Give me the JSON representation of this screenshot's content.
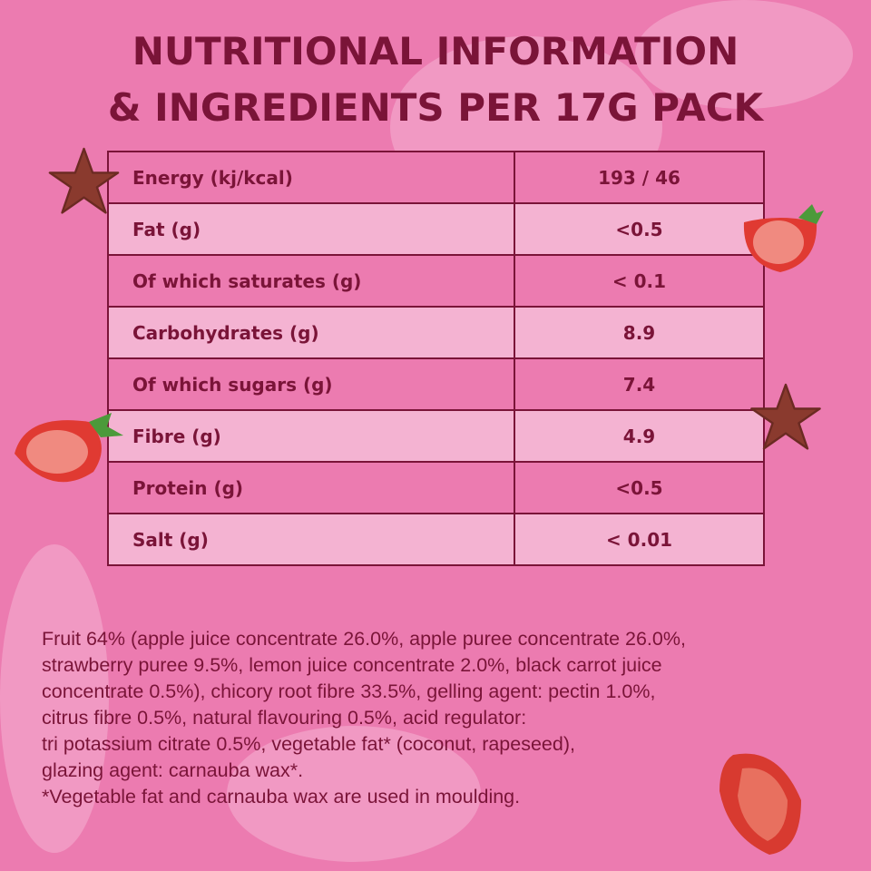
{
  "title": {
    "line1": "Nutritional Information",
    "line2": "& Ingredients per 17g pack"
  },
  "nutrition": [
    {
      "label": "Energy (kj/kcal)",
      "value": "193 / 46"
    },
    {
      "label": "Fat (g)",
      "value": "<0.5"
    },
    {
      "label": "Of which saturates (g)",
      "value": "< 0.1"
    },
    {
      "label": "Carbohydrates (g)",
      "value": "8.9"
    },
    {
      "label": "Of which sugars (g)",
      "value": "7.4"
    },
    {
      "label": "Fibre (g)",
      "value": "4.9"
    },
    {
      "label": "Protein (g)",
      "value": "<0.5"
    },
    {
      "label": "Salt (g)",
      "value": "< 0.01"
    }
  ],
  "ingredients": [
    "Fruit 64% (apple juice concentrate 26.0%, apple puree concentrate 26.0%,",
    "strawberry puree 9.5%, lemon juice concentrate 2.0%, black carrot juice",
    "concentrate 0.5%), chicory root fibre 33.5%, gelling agent: pectin 1.0%,",
    "citrus fibre 0.5%, natural flavouring 0.5%, acid regulator:",
    "tri potassium citrate 0.5%, vegetable fat* (coconut, rapeseed),",
    "glazing agent: carnauba wax*.",
    "*Vegetable fat and carnauba wax are used in moulding."
  ],
  "colors": {
    "background": "#ec7bb0",
    "row_light": "#f4b3d2",
    "text": "#7a1438"
  }
}
